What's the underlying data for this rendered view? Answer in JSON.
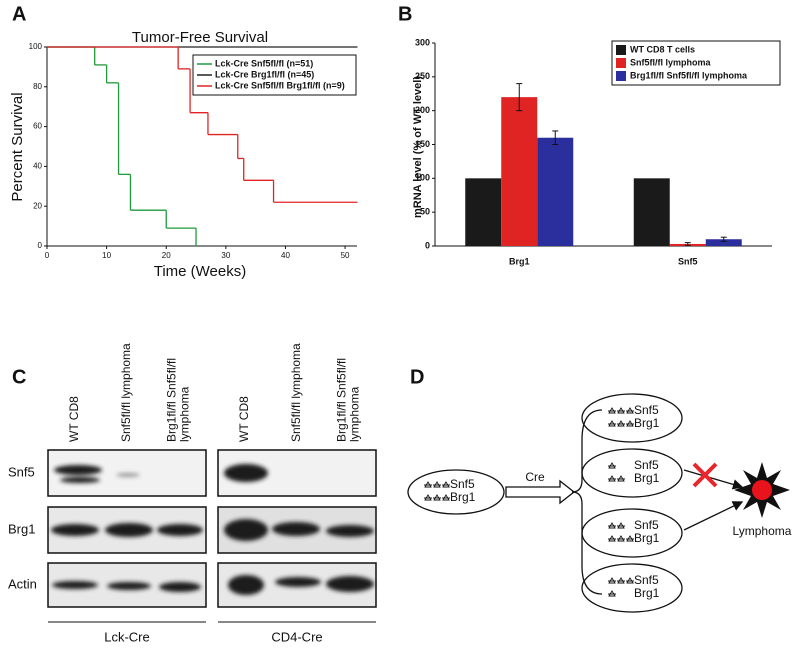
{
  "chart_data": [
    {
      "type": "step",
      "label": "A",
      "title": "Tumor-Free Survival",
      "xlabel": "Time (Weeks)",
      "ylabel": "Percent Survival",
      "xlim": [
        0,
        52
      ],
      "xticks": [
        0,
        10,
        20,
        30,
        40,
        50
      ],
      "ylim": [
        0,
        100
      ],
      "yticks": [
        0,
        20,
        40,
        60,
        80,
        100
      ],
      "series": [
        {
          "name": "Lck-Cre Snf5fl/fl (n=51)",
          "color": "#1f9a3c",
          "x": [
            0,
            8,
            10,
            12,
            14,
            20,
            25
          ],
          "values": [
            100,
            91,
            82,
            36,
            18,
            9,
            0
          ]
        },
        {
          "name": "Lck-Cre Brg1fl/fl (n=45)",
          "color": "#222222",
          "x": [
            0,
            52
          ],
          "values": [
            100,
            100
          ]
        },
        {
          "name": "Lck-Cre Snf5fl/fl Brg1fl/fl (n=9)",
          "color": "#e02424",
          "x": [
            0,
            22,
            24,
            27,
            32,
            33,
            38,
            52
          ],
          "values": [
            100,
            89,
            67,
            56,
            44,
            33,
            22,
            22
          ]
        }
      ]
    },
    {
      "type": "bar",
      "label": "B",
      "ylabel": "mRNA level (% of WT level)",
      "categories": [
        "Brg1",
        "Snf5"
      ],
      "ylim": [
        0,
        300
      ],
      "yticks": [
        0,
        50,
        100,
        150,
        200,
        250,
        300
      ],
      "series": [
        {
          "name": "WT CD8 T cells",
          "color": "#1a1a1a",
          "values": [
            100,
            100
          ],
          "errors": [
            0,
            0
          ]
        },
        {
          "name": "Snf5fl/fl lymphoma",
          "color": "#e02424",
          "values": [
            220,
            3
          ],
          "errors": [
            20,
            2
          ]
        },
        {
          "name": "Brg1fl/fl Snf5fl/fl lymphoma",
          "color": "#2b2f9e",
          "values": [
            160,
            10
          ],
          "errors": [
            10,
            3
          ]
        }
      ]
    }
  ],
  "blot": {
    "label": "C",
    "rows": [
      "Snf5",
      "Brg1",
      "Actin"
    ],
    "groups": [
      {
        "name": "Lck-Cre",
        "columns": [
          [
            "WT CD8"
          ],
          [
            "Snf5fl/fl lymphoma"
          ],
          [
            "Brg1fl/fl Snf5fl/fl",
            "lymphoma"
          ]
        ]
      },
      {
        "name": "CD4-Cre",
        "columns": [
          [
            "WT CD8"
          ],
          [
            "Snf5fl/fl lymphoma"
          ],
          [
            "Brg1fl/fl Snf5fl/fl",
            "lymphoma"
          ]
        ]
      }
    ]
  },
  "diagram": {
    "label": "D",
    "start": [
      "Snf5",
      "Brg1"
    ],
    "arrow_label": "Cre",
    "outcomes": [
      [
        "Snf5",
        "Brg1"
      ],
      [
        "Snf5",
        "Brg1"
      ],
      [
        "Snf5",
        "Brg1"
      ],
      [
        "Snf5",
        "Brg1"
      ]
    ],
    "result": "Lymphoma"
  }
}
